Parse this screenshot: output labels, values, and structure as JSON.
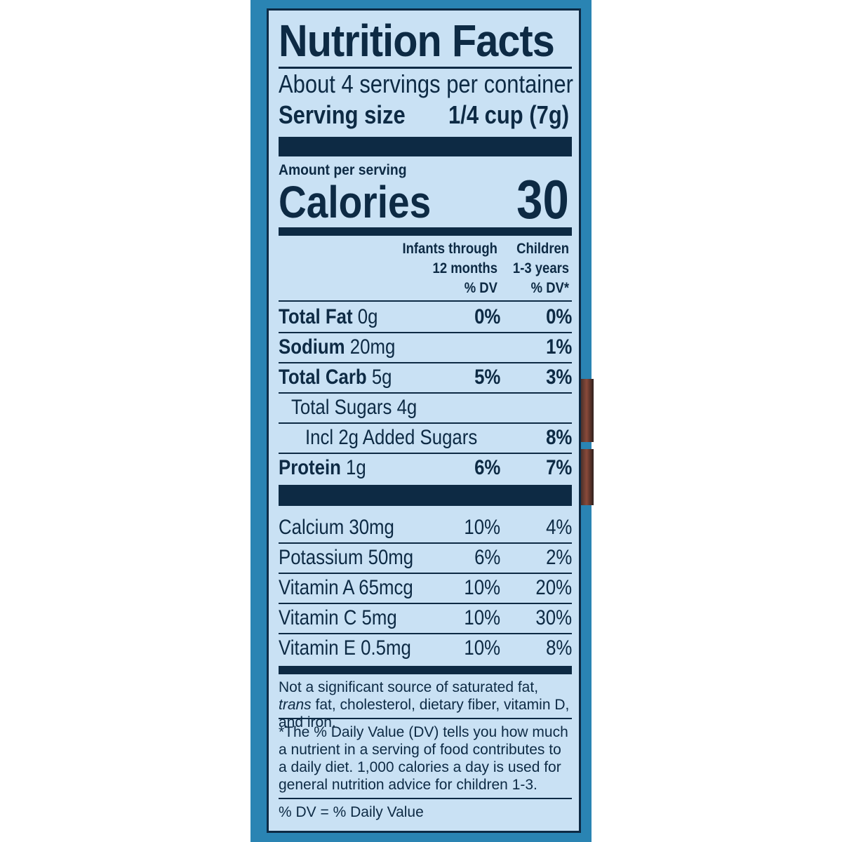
{
  "label": {
    "title": "Nutrition Facts",
    "servings_per_container": "About 4 servings per container",
    "serving_size_label": "Serving size",
    "serving_size_value": "1/4 cup (7g)",
    "amount_per_serving": "Amount per serving",
    "calories_label": "Calories",
    "calories_value": "30",
    "col1_header": [
      "Infants through",
      "12 months",
      "% DV"
    ],
    "col2_header": [
      "Children",
      "1-3 years",
      "% DV*"
    ],
    "nutrients": [
      {
        "name": "Total Fat",
        "amount": " 0g",
        "dv_infant": "0%",
        "dv_child": "0%"
      },
      {
        "name": "Sodium",
        "amount": " 20mg",
        "dv_infant": "",
        "dv_child": "1%"
      },
      {
        "name": "Total Carb",
        "amount": " 5g",
        "dv_infant": "5%",
        "dv_child": "3%"
      },
      {
        "name": "",
        "amount": "Total Sugars 4g",
        "dv_infant": "",
        "dv_child": ""
      },
      {
        "name": "",
        "amount": "Incl 2g Added Sugars",
        "dv_infant": "",
        "dv_child": "8%"
      },
      {
        "name": "Protein",
        "amount": " 1g",
        "dv_infant": "6%",
        "dv_child": "7%"
      }
    ],
    "vitamins": [
      {
        "name": "Calcium 30mg",
        "dv_infant": "10%",
        "dv_child": "4%"
      },
      {
        "name": "Potassium 50mg",
        "dv_infant": "6%",
        "dv_child": "2%"
      },
      {
        "name": "Vitamin A 65mcg",
        "dv_infant": "10%",
        "dv_child": "20%"
      },
      {
        "name": "Vitamin C 5mg",
        "dv_infant": "10%",
        "dv_child": "30%"
      },
      {
        "name": "Vitamin E 0.5mg",
        "dv_infant": "10%",
        "dv_child": "8%"
      }
    ],
    "footnote_not_significant_pre": "Not a significant source of saturated fat, ",
    "footnote_not_significant_trans": "trans",
    "footnote_not_significant_post": " fat, cholesterol, dietary fiber, vitamin D, and iron.",
    "footnote_dv": "*The % Daily Value (DV) tells you how much a nutrient in a serving of food contributes to a daily diet. 1,000 calories a day is used for general nutrition advice for children 1-3.",
    "footnote_legend": "% DV = % Daily Value"
  },
  "colors": {
    "panel_background": "#c9e1f4",
    "ink": "#0d2a44",
    "package_blue": "#2a84b3"
  }
}
